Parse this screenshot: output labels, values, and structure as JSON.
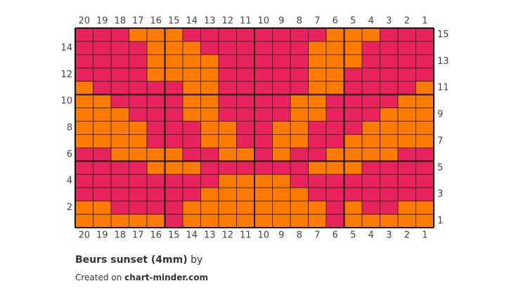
{
  "chart": {
    "columns": [
      20,
      19,
      18,
      17,
      16,
      15,
      14,
      13,
      12,
      11,
      10,
      9,
      8,
      7,
      6,
      5,
      4,
      3,
      2,
      1
    ],
    "rows": [
      {
        "number": 15,
        "cells": [
          "#e8235e",
          "#e8235e",
          "#e8235e",
          "#ff7b00",
          "#ff7b00",
          "#ff7b00",
          "#e8235e",
          "#e8235e",
          "#e8235e",
          "#e8235e",
          "#e8235e",
          "#e8235e",
          "#e8235e",
          "#e8235e",
          "#ff7b00",
          "#ff7b00",
          "#ff7b00",
          "#e8235e",
          "#e8235e",
          "#e8235e"
        ]
      },
      {
        "number": 14,
        "cells": [
          "#e8235e",
          "#e8235e",
          "#e8235e",
          "#e8235e",
          "#ff7b00",
          "#ff7b00",
          "#ff7b00",
          "#e8235e",
          "#e8235e",
          "#e8235e",
          "#e8235e",
          "#e8235e",
          "#e8235e",
          "#ff7b00",
          "#ff7b00",
          "#ff7b00",
          "#e8235e",
          "#e8235e",
          "#e8235e",
          "#e8235e"
        ]
      },
      {
        "number": 13,
        "cells": [
          "#e8235e",
          "#e8235e",
          "#e8235e",
          "#e8235e",
          "#ff7b00",
          "#ff7b00",
          "#ff7b00",
          "#ff7b00",
          "#e8235e",
          "#e8235e",
          "#e8235e",
          "#e8235e",
          "#e8235e",
          "#ff7b00",
          "#ff7b00",
          "#ff7b00",
          "#e8235e",
          "#e8235e",
          "#e8235e",
          "#e8235e"
        ]
      },
      {
        "number": 12,
        "cells": [
          "#e8235e",
          "#e8235e",
          "#e8235e",
          "#e8235e",
          "#ff7b00",
          "#ff7b00",
          "#ff7b00",
          "#ff7b00",
          "#e8235e",
          "#e8235e",
          "#e8235e",
          "#e8235e",
          "#e8235e",
          "#ff7b00",
          "#ff7b00",
          "#e8235e",
          "#e8235e",
          "#e8235e",
          "#e8235e",
          "#e8235e"
        ]
      },
      {
        "number": 11,
        "cells": [
          "#ff7b00",
          "#e8235e",
          "#e8235e",
          "#e8235e",
          "#e8235e",
          "#e8235e",
          "#ff7b00",
          "#ff7b00",
          "#e8235e",
          "#e8235e",
          "#e8235e",
          "#e8235e",
          "#e8235e",
          "#ff7b00",
          "#ff7b00",
          "#e8235e",
          "#e8235e",
          "#e8235e",
          "#e8235e",
          "#ff7b00"
        ]
      },
      {
        "number": 10,
        "cells": [
          "#ff7b00",
          "#ff7b00",
          "#e8235e",
          "#e8235e",
          "#e8235e",
          "#e8235e",
          "#ff7b00",
          "#ff7b00",
          "#e8235e",
          "#e8235e",
          "#e8235e",
          "#e8235e",
          "#ff7b00",
          "#ff7b00",
          "#e8235e",
          "#e8235e",
          "#e8235e",
          "#e8235e",
          "#ff7b00",
          "#ff7b00"
        ]
      },
      {
        "number": 9,
        "cells": [
          "#ff7b00",
          "#ff7b00",
          "#ff7b00",
          "#e8235e",
          "#e8235e",
          "#e8235e",
          "#ff7b00",
          "#ff7b00",
          "#e8235e",
          "#e8235e",
          "#e8235e",
          "#e8235e",
          "#ff7b00",
          "#ff7b00",
          "#e8235e",
          "#e8235e",
          "#e8235e",
          "#ff7b00",
          "#ff7b00",
          "#ff7b00"
        ]
      },
      {
        "number": 8,
        "cells": [
          "#ff7b00",
          "#ff7b00",
          "#ff7b00",
          "#ff7b00",
          "#e8235e",
          "#e8235e",
          "#e8235e",
          "#ff7b00",
          "#ff7b00",
          "#e8235e",
          "#e8235e",
          "#ff7b00",
          "#ff7b00",
          "#e8235e",
          "#e8235e",
          "#e8235e",
          "#ff7b00",
          "#ff7b00",
          "#ff7b00",
          "#ff7b00"
        ]
      },
      {
        "number": 7,
        "cells": [
          "#ff7b00",
          "#ff7b00",
          "#ff7b00",
          "#ff7b00",
          "#e8235e",
          "#e8235e",
          "#e8235e",
          "#ff7b00",
          "#ff7b00",
          "#e8235e",
          "#e8235e",
          "#ff7b00",
          "#ff7b00",
          "#e8235e",
          "#e8235e",
          "#ff7b00",
          "#ff7b00",
          "#ff7b00",
          "#ff7b00",
          "#ff7b00"
        ]
      },
      {
        "number": 6,
        "cells": [
          "#e8235e",
          "#e8235e",
          "#ff7b00",
          "#ff7b00",
          "#ff7b00",
          "#ff7b00",
          "#e8235e",
          "#e8235e",
          "#ff7b00",
          "#ff7b00",
          "#e8235e",
          "#ff7b00",
          "#e8235e",
          "#e8235e",
          "#ff7b00",
          "#ff7b00",
          "#ff7b00",
          "#ff7b00",
          "#e8235e",
          "#e8235e"
        ]
      },
      {
        "number": 5,
        "cells": [
          "#e8235e",
          "#e8235e",
          "#e8235e",
          "#e8235e",
          "#ff7b00",
          "#ff7b00",
          "#ff7b00",
          "#e8235e",
          "#e8235e",
          "#e8235e",
          "#e8235e",
          "#e8235e",
          "#e8235e",
          "#ff7b00",
          "#ff7b00",
          "#ff7b00",
          "#e8235e",
          "#e8235e",
          "#e8235e",
          "#e8235e"
        ]
      },
      {
        "number": 4,
        "cells": [
          "#e8235e",
          "#e8235e",
          "#e8235e",
          "#e8235e",
          "#e8235e",
          "#e8235e",
          "#e8235e",
          "#e8235e",
          "#ff7b00",
          "#ff7b00",
          "#ff7b00",
          "#ff7b00",
          "#e8235e",
          "#e8235e",
          "#e8235e",
          "#e8235e",
          "#e8235e",
          "#e8235e",
          "#e8235e",
          "#e8235e"
        ]
      },
      {
        "number": 3,
        "cells": [
          "#e8235e",
          "#e8235e",
          "#e8235e",
          "#e8235e",
          "#e8235e",
          "#e8235e",
          "#e8235e",
          "#ff7b00",
          "#ff7b00",
          "#ff7b00",
          "#ff7b00",
          "#ff7b00",
          "#ff7b00",
          "#e8235e",
          "#e8235e",
          "#e8235e",
          "#e8235e",
          "#e8235e",
          "#e8235e",
          "#e8235e"
        ]
      },
      {
        "number": 2,
        "cells": [
          "#ff7b00",
          "#ff7b00",
          "#e8235e",
          "#e8235e",
          "#e8235e",
          "#e8235e",
          "#ff7b00",
          "#ff7b00",
          "#ff7b00",
          "#ff7b00",
          "#ff7b00",
          "#ff7b00",
          "#ff7b00",
          "#ff7b00",
          "#e8235e",
          "#ff7b00",
          "#e8235e",
          "#e8235e",
          "#ff7b00",
          "#ff7b00"
        ]
      },
      {
        "number": 1,
        "cells": [
          "#ff7b00",
          "#ff7b00",
          "#ff7b00",
          "#ff7b00",
          "#ff7b00",
          "#e8235e",
          "#ff7b00",
          "#ff7b00",
          "#ff7b00",
          "#ff7b00",
          "#ff7b00",
          "#ff7b00",
          "#ff7b00",
          "#ff7b00",
          "#e8235e",
          "#ff7b00",
          "#ff7b00",
          "#ff7b00",
          "#ff7b00",
          "#ff7b00"
        ]
      }
    ]
  },
  "footer": {
    "title": "Beurs sunset (4mm)",
    "by": "by",
    "created": "Created on",
    "site": "chart-minder.com"
  }
}
